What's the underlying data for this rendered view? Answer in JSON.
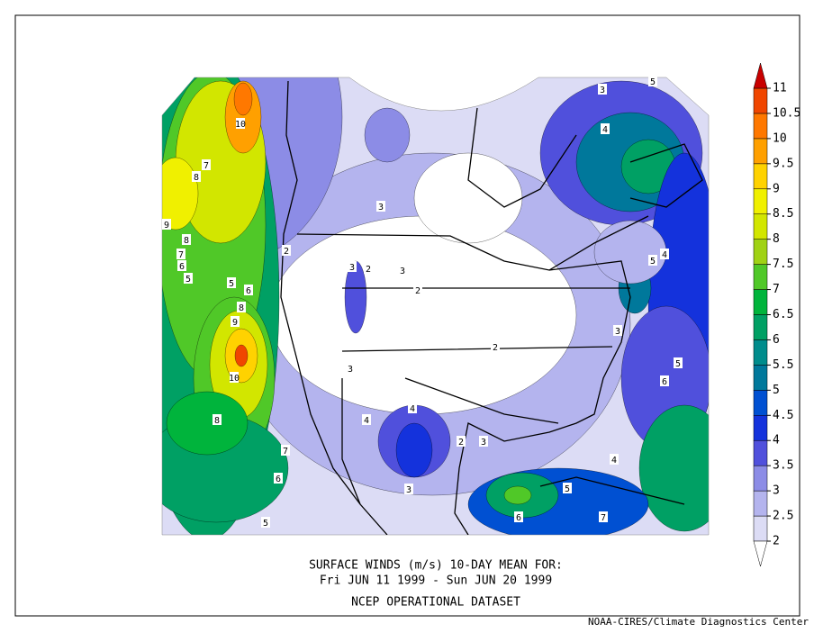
{
  "caption": {
    "line1": "SURFACE WINDS (m/s)    10-DAY MEAN FOR:",
    "line2": "Fri JUN 11 1999 - Sun JUN 20 1999",
    "line3": "NCEP OPERATIONAL DATASET"
  },
  "credit": "NOAA-CIRES/Climate Diagnostics Center",
  "colorbar": {
    "levels": [
      2,
      2.5,
      3,
      3.5,
      4,
      4.5,
      5,
      5.5,
      6,
      6.5,
      7,
      7.5,
      8,
      8.5,
      9,
      9.5,
      10,
      10.5,
      11
    ],
    "colors": [
      "#ffffff",
      "#dcdcf5",
      "#b4b4ee",
      "#8c8ce6",
      "#5050dc",
      "#1432dc",
      "#0050d2",
      "#00789b",
      "#008c8c",
      "#00a064",
      "#00b43c",
      "#50c828",
      "#a0d214",
      "#d2e600",
      "#f0f000",
      "#ffd200",
      "#ffa000",
      "#ff7800",
      "#f04600",
      "#c80000"
    ]
  },
  "contour_labels": [
    10,
    7,
    8,
    9,
    8,
    7,
    6,
    5,
    5,
    6,
    8,
    9,
    10,
    8,
    7,
    6,
    5,
    3,
    2,
    3,
    2,
    3,
    2,
    4,
    4,
    3,
    2,
    3,
    5,
    4,
    3,
    4,
    5,
    6,
    5,
    6,
    7,
    5,
    3,
    2,
    4,
    3
  ]
}
